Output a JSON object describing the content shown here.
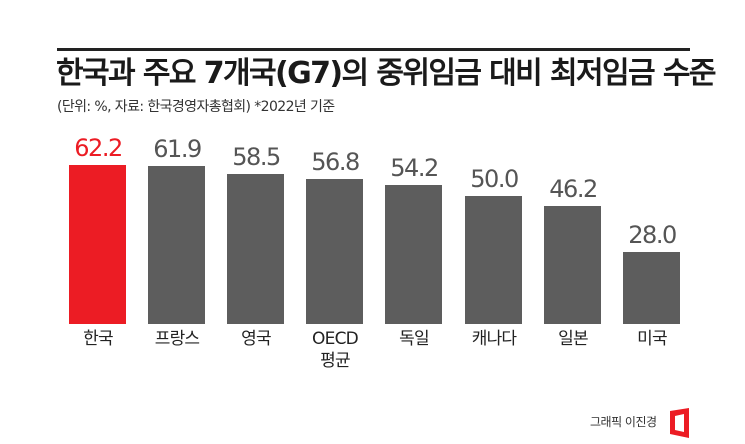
{
  "header": {
    "title": "한국과 주요 7개국(G7)의 중위임금 대비 최저임금 수준",
    "subtitle": "(단위: %, 자료: 한국경영자총협회)  *2022년 기준"
  },
  "colors": {
    "highlight": "#ec1c24",
    "bar": "#5d5d5d",
    "text": "#555555"
  },
  "chart_data": {
    "type": "bar",
    "title": "한국과 주요 7개국(G7)의 중위임금 대비 최저임금 수준",
    "subtitle": "(단위: %, 자료: 한국경영자총협회) *2022년 기준",
    "categories": [
      "한국",
      "프랑스",
      "영국",
      "OECD 평균",
      "독일",
      "캐나다",
      "일본",
      "미국"
    ],
    "values": [
      62.2,
      61.9,
      58.5,
      56.8,
      54.2,
      50.0,
      46.2,
      28.0
    ],
    "value_labels": [
      "62.2",
      "61.9",
      "58.5",
      "56.8",
      "54.2",
      "50.0",
      "46.2",
      "28.0"
    ],
    "highlight_index": 0,
    "xlabel": "",
    "ylabel": "%",
    "grid": false,
    "legend": "none"
  },
  "bars": [
    {
      "label_line1": "한국",
      "label_line2": "",
      "value": "62.2"
    },
    {
      "label_line1": "프랑스",
      "label_line2": "",
      "value": "61.9"
    },
    {
      "label_line1": "영국",
      "label_line2": "",
      "value": "58.5"
    },
    {
      "label_line1": "OECD",
      "label_line2": "평균",
      "value": "56.8"
    },
    {
      "label_line1": "독일",
      "label_line2": "",
      "value": "54.2"
    },
    {
      "label_line1": "캐나다",
      "label_line2": "",
      "value": "50.0"
    },
    {
      "label_line1": "일본",
      "label_line2": "",
      "value": "46.2"
    },
    {
      "label_line1": "미국",
      "label_line2": "",
      "value": "28.0"
    }
  ],
  "footer": {
    "credit": "그래픽 이진경",
    "logo_icon": "red-frame-logo-icon"
  }
}
